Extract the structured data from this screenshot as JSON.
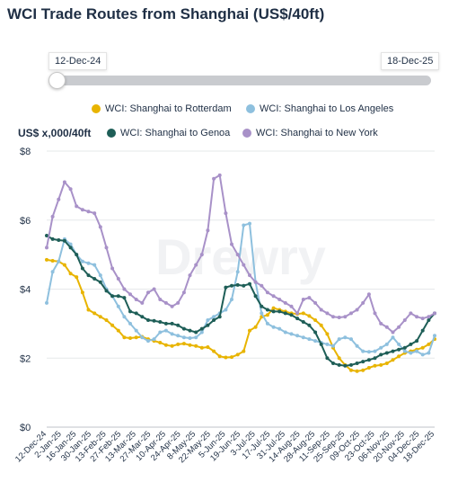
{
  "title": "WCI Trade Routes from Shanghai (US$/40ft)",
  "range": {
    "start": "12-Dec-24",
    "end": "18-Dec-25"
  },
  "watermark": "Drewry",
  "chart_data": {
    "type": "line",
    "ylabel": "US$ x,000/40ft",
    "ylim": [
      0,
      8
    ],
    "yticks": [
      "$0",
      "$2",
      "$4",
      "$6",
      "$8"
    ],
    "grid": true,
    "legend_position": "top",
    "x_tick_labels": [
      "12-Dec-24",
      "2-Jan-25",
      "16-Jan-25",
      "30-Jan-25",
      "13-Feb-25",
      "27-Feb-25",
      "13-Mar-25",
      "27-Mar-25",
      "10-Apr-25",
      "24-Apr-25",
      "8-May-25",
      "22-May-25",
      "5-Jun-25",
      "19-Jun-25",
      "3-Jul-25",
      "17-Jul-25",
      "31-Jul-25",
      "14-Aug-25",
      "28-Aug-25",
      "11-Sep-25",
      "25-Sep-25",
      "09-Oct-25",
      "23-Oct-25",
      "06-Nov-25",
      "20-Nov-25",
      "04-Dec-25",
      "18-Dec-25"
    ],
    "series": [
      {
        "name": "WCI: Shanghai to Rotterdam",
        "color": "#e8b400",
        "values": [
          4.85,
          4.82,
          4.8,
          4.7,
          4.45,
          4.35,
          3.9,
          3.4,
          3.3,
          3.2,
          3.1,
          2.95,
          2.8,
          2.6,
          2.58,
          2.6,
          2.62,
          2.55,
          2.5,
          2.45,
          2.38,
          2.35,
          2.4,
          2.42,
          2.38,
          2.35,
          2.3,
          2.32,
          2.2,
          2.05,
          2.02,
          2.03,
          2.1,
          2.2,
          2.8,
          2.9,
          3.2,
          3.25,
          3.45,
          3.4,
          3.35,
          3.3,
          3.28,
          3.3,
          3.22,
          3.1,
          2.95,
          2.7,
          2.3,
          2.0,
          1.8,
          1.65,
          1.62,
          1.65,
          1.72,
          1.78,
          1.8,
          1.85,
          1.95,
          2.05,
          2.15,
          2.2,
          2.25,
          2.3,
          2.4,
          2.55
        ]
      },
      {
        "name": "WCI: Shanghai to Los Angeles",
        "color": "#8ec0de",
        "values": [
          3.6,
          4.5,
          4.8,
          5.45,
          5.3,
          5.0,
          4.8,
          4.75,
          4.7,
          4.4,
          4.0,
          3.8,
          3.5,
          3.2,
          3.0,
          2.8,
          2.6,
          2.5,
          2.55,
          2.75,
          2.8,
          2.7,
          2.65,
          2.6,
          2.58,
          2.6,
          2.75,
          3.1,
          3.2,
          3.3,
          3.4,
          3.7,
          4.5,
          5.85,
          5.9,
          4.2,
          3.3,
          3.0,
          2.9,
          2.85,
          2.75,
          2.7,
          2.65,
          2.6,
          2.55,
          2.5,
          2.45,
          2.4,
          2.35,
          2.55,
          2.6,
          2.55,
          2.35,
          2.2,
          2.18,
          2.2,
          2.3,
          2.4,
          2.6,
          2.4,
          2.2,
          2.15,
          2.2,
          2.1,
          2.15,
          2.65
        ]
      },
      {
        "name": "WCI: Shanghai to Genoa",
        "color": "#1e5e57",
        "values": [
          5.55,
          5.45,
          5.42,
          5.4,
          5.2,
          5.0,
          4.6,
          4.4,
          4.3,
          4.2,
          3.95,
          3.8,
          3.8,
          3.75,
          3.35,
          3.3,
          3.2,
          3.1,
          3.08,
          3.05,
          3.0,
          3.0,
          2.95,
          2.85,
          2.8,
          2.75,
          2.85,
          2.95,
          3.1,
          3.2,
          4.05,
          4.1,
          4.12,
          4.1,
          4.15,
          3.8,
          3.5,
          3.4,
          3.35,
          3.35,
          3.3,
          3.25,
          3.15,
          3.05,
          2.95,
          2.75,
          2.4,
          2.0,
          1.85,
          1.8,
          1.78,
          1.8,
          1.85,
          1.9,
          1.95,
          2.0,
          2.1,
          2.15,
          2.2,
          2.25,
          2.3,
          2.4,
          2.5,
          2.8,
          3.1,
          3.3
        ]
      },
      {
        "name": "WCI: Shanghai to New York",
        "color": "#a891c8",
        "values": [
          5.2,
          6.1,
          6.6,
          7.1,
          6.9,
          6.4,
          6.3,
          6.25,
          6.2,
          5.8,
          5.2,
          4.6,
          4.3,
          4.0,
          3.85,
          3.7,
          3.6,
          3.9,
          4.0,
          3.7,
          3.6,
          3.5,
          3.6,
          3.9,
          4.4,
          4.7,
          5.0,
          5.7,
          7.2,
          7.3,
          6.2,
          5.3,
          5.0,
          4.7,
          4.4,
          4.2,
          4.1,
          3.9,
          3.8,
          3.7,
          3.6,
          3.5,
          3.3,
          3.7,
          3.75,
          3.6,
          3.4,
          3.3,
          3.2,
          3.18,
          3.2,
          3.3,
          3.4,
          3.6,
          3.85,
          3.3,
          3.0,
          2.9,
          2.75,
          2.9,
          3.1,
          3.3,
          3.2,
          3.15,
          3.2,
          3.3
        ]
      }
    ]
  }
}
